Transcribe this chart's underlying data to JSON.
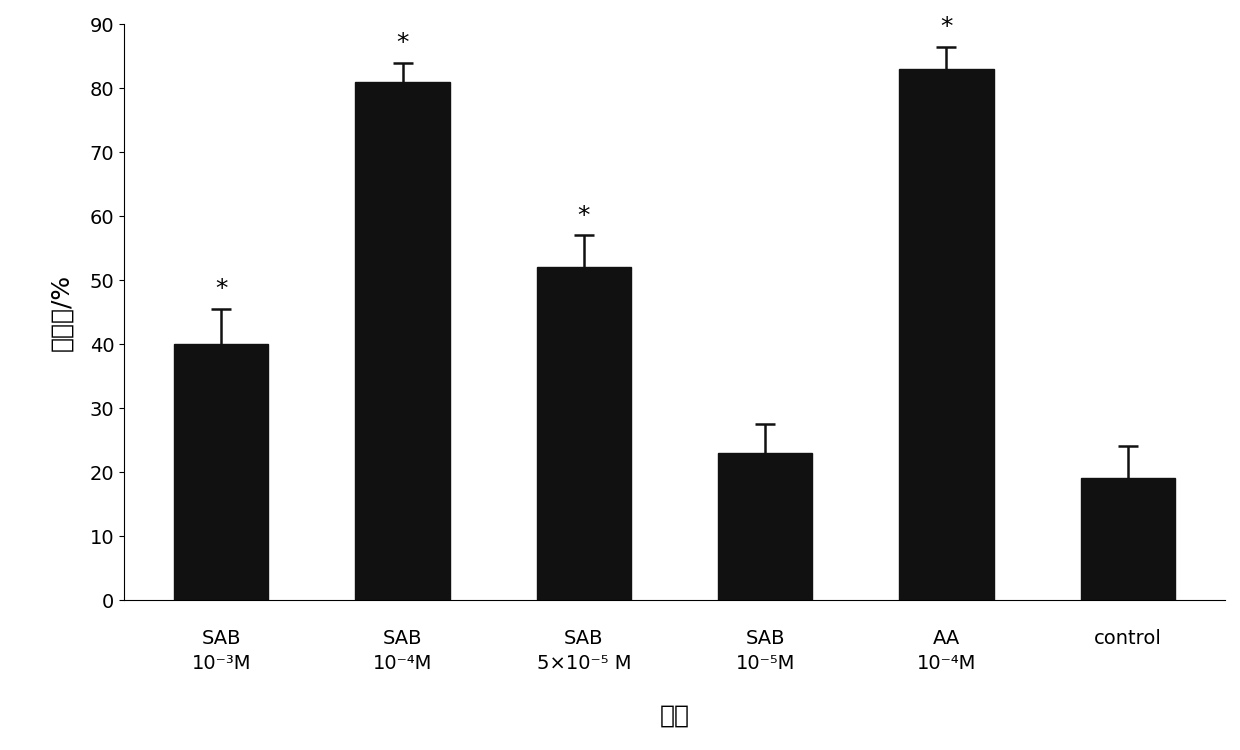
{
  "values": [
    40.0,
    81.0,
    52.0,
    23.0,
    83.0,
    19.0
  ],
  "errors": [
    5.5,
    3.0,
    5.0,
    4.5,
    3.5,
    5.0
  ],
  "bar_color": "#111111",
  "error_color": "#111111",
  "ylabel": "分化率/%",
  "xlabel": "分组",
  "ylim": [
    0,
    90
  ],
  "yticks": [
    0,
    10,
    20,
    30,
    40,
    50,
    60,
    70,
    80,
    90
  ],
  "significant": [
    true,
    true,
    true,
    false,
    true,
    false
  ],
  "star_label": "*",
  "background_color": "#ffffff",
  "bar_width": 0.52,
  "tick_label_fontsize": 14,
  "axis_label_fontsize": 18,
  "star_fontsize": 18,
  "tick_labels_top": [
    "SAB",
    "SAB",
    "SAB",
    "SAB",
    "AA",
    "control"
  ],
  "tick_labels_bot": [
    "10⁻³M",
    "10⁻⁴M",
    "5×10⁻⁵ M",
    "10⁻⁵M",
    "10⁻⁴M",
    ""
  ]
}
